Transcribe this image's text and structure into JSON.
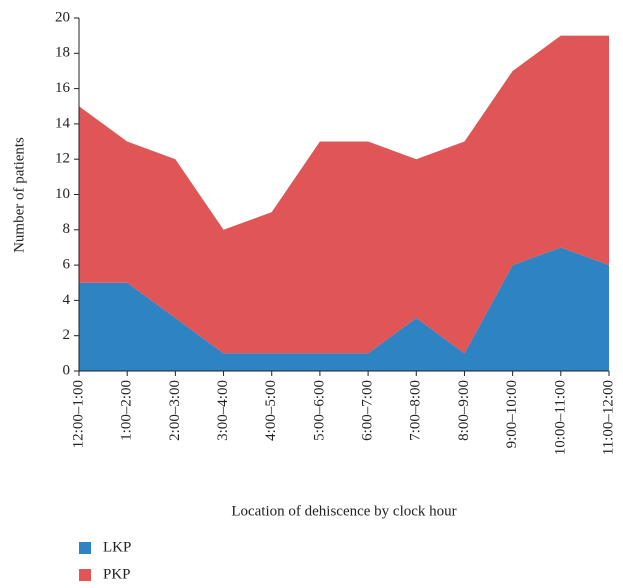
{
  "chart_data": {
    "type": "stacked_area",
    "x_label": "Location of dehiscence by clock hour",
    "y_label": "Number of patients",
    "categories": [
      "12:00–1:00",
      "1:00–2:00",
      "2:00–3:00",
      "3:00–4:00",
      "4:00–5:00",
      "5:00–6:00",
      "6:00–7:00",
      "7:00–8:00",
      "8:00–9:00",
      "9:00–10:00",
      "10:00–11:00",
      "11:00–12:00"
    ],
    "series": [
      {
        "name": "LKP",
        "color": "#2e83c3",
        "values": [
          5,
          5,
          3,
          1,
          1,
          1,
          1,
          3,
          1,
          6,
          7,
          6
        ]
      },
      {
        "name": "PKP",
        "color": "#e05555",
        "values": [
          10,
          8,
          9,
          7,
          8,
          12,
          12,
          9,
          12,
          11,
          12,
          13
        ]
      }
    ],
    "ylim": [
      0,
      20
    ],
    "yticks": [
      0,
      2,
      4,
      6,
      8,
      10,
      12,
      14,
      16,
      18,
      20
    ],
    "legend": "bottom-left"
  }
}
